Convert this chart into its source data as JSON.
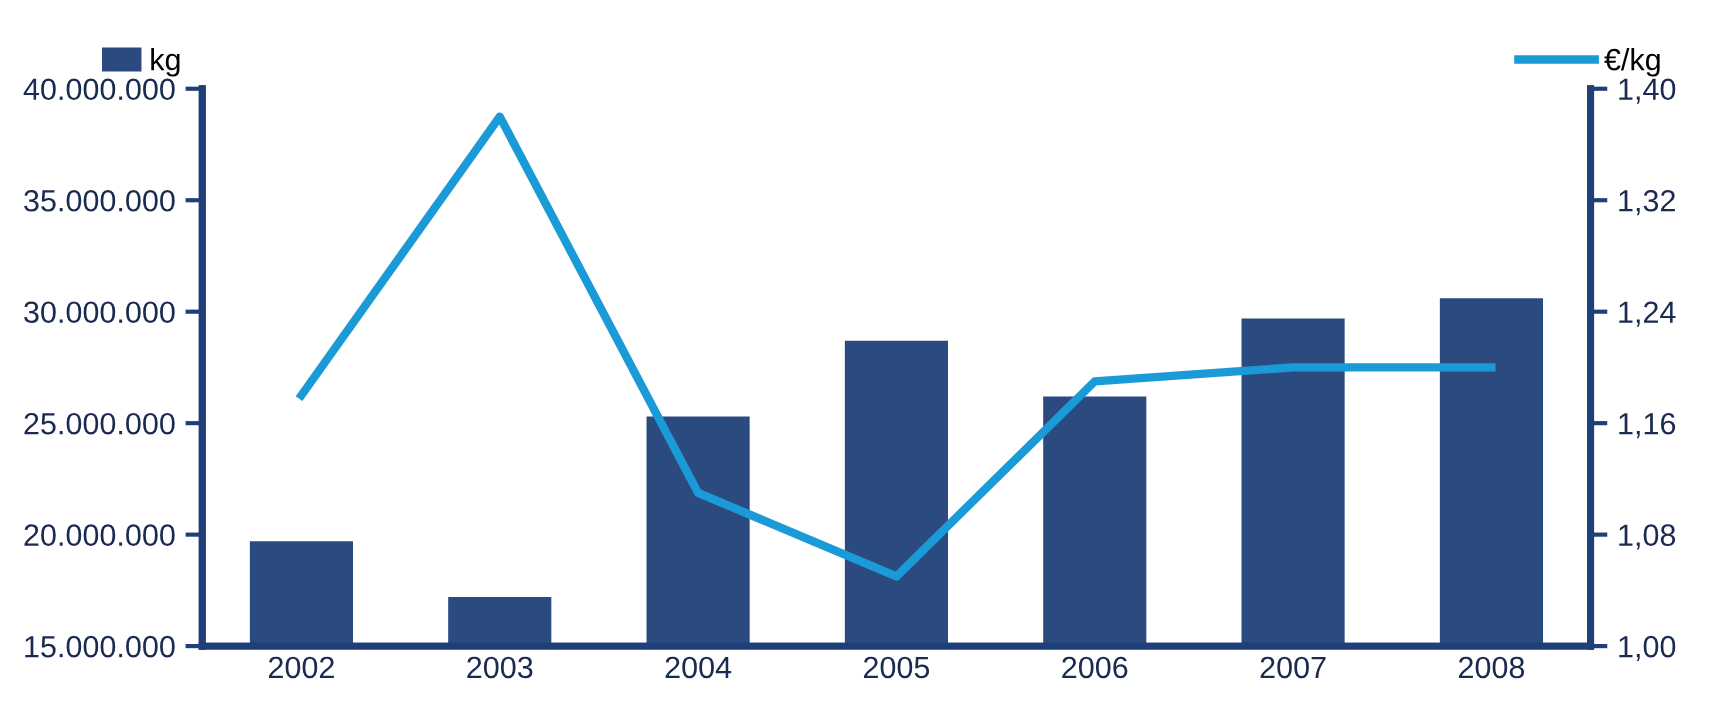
{
  "chart_data": {
    "type": "bar",
    "categories": [
      "2002",
      "2003",
      "2004",
      "2005",
      "2006",
      "2007",
      "2008"
    ],
    "series": [
      {
        "name": "kg",
        "color": "#2a4a80",
        "values": [
          19700000,
          17200000,
          25300000,
          28700000,
          26200000,
          29700000,
          30600000
        ]
      },
      {
        "name": "€/kg",
        "type": "line",
        "axis": "y2",
        "color": "#1a9ad6",
        "values": [
          1.18,
          1.38,
          1.11,
          1.05,
          1.19,
          1.2,
          1.2
        ]
      }
    ],
    "ylim": [
      15000000,
      40000000
    ],
    "yticks": [
      {
        "value": 15000000,
        "label": "15.000.000"
      },
      {
        "value": 20000000,
        "label": "20.000.000"
      },
      {
        "value": 25000000,
        "label": "25.000.000"
      },
      {
        "value": 30000000,
        "label": "30.000.000"
      },
      {
        "value": 35000000,
        "label": "35.000.000"
      },
      {
        "value": 40000000,
        "label": "40.000.000"
      }
    ],
    "y2lim": [
      1.0,
      1.4
    ],
    "y2ticks": [
      {
        "value": 1.0,
        "label": "1,00"
      },
      {
        "value": 1.08,
        "label": "1,08"
      },
      {
        "value": 1.16,
        "label": "1,16"
      },
      {
        "value": 1.24,
        "label": "1,24"
      },
      {
        "value": 1.32,
        "label": "1,32"
      },
      {
        "value": 1.4,
        "label": "1,40"
      }
    ],
    "legend": "top",
    "grid": false,
    "marker": "none",
    "line_style": "solid"
  }
}
